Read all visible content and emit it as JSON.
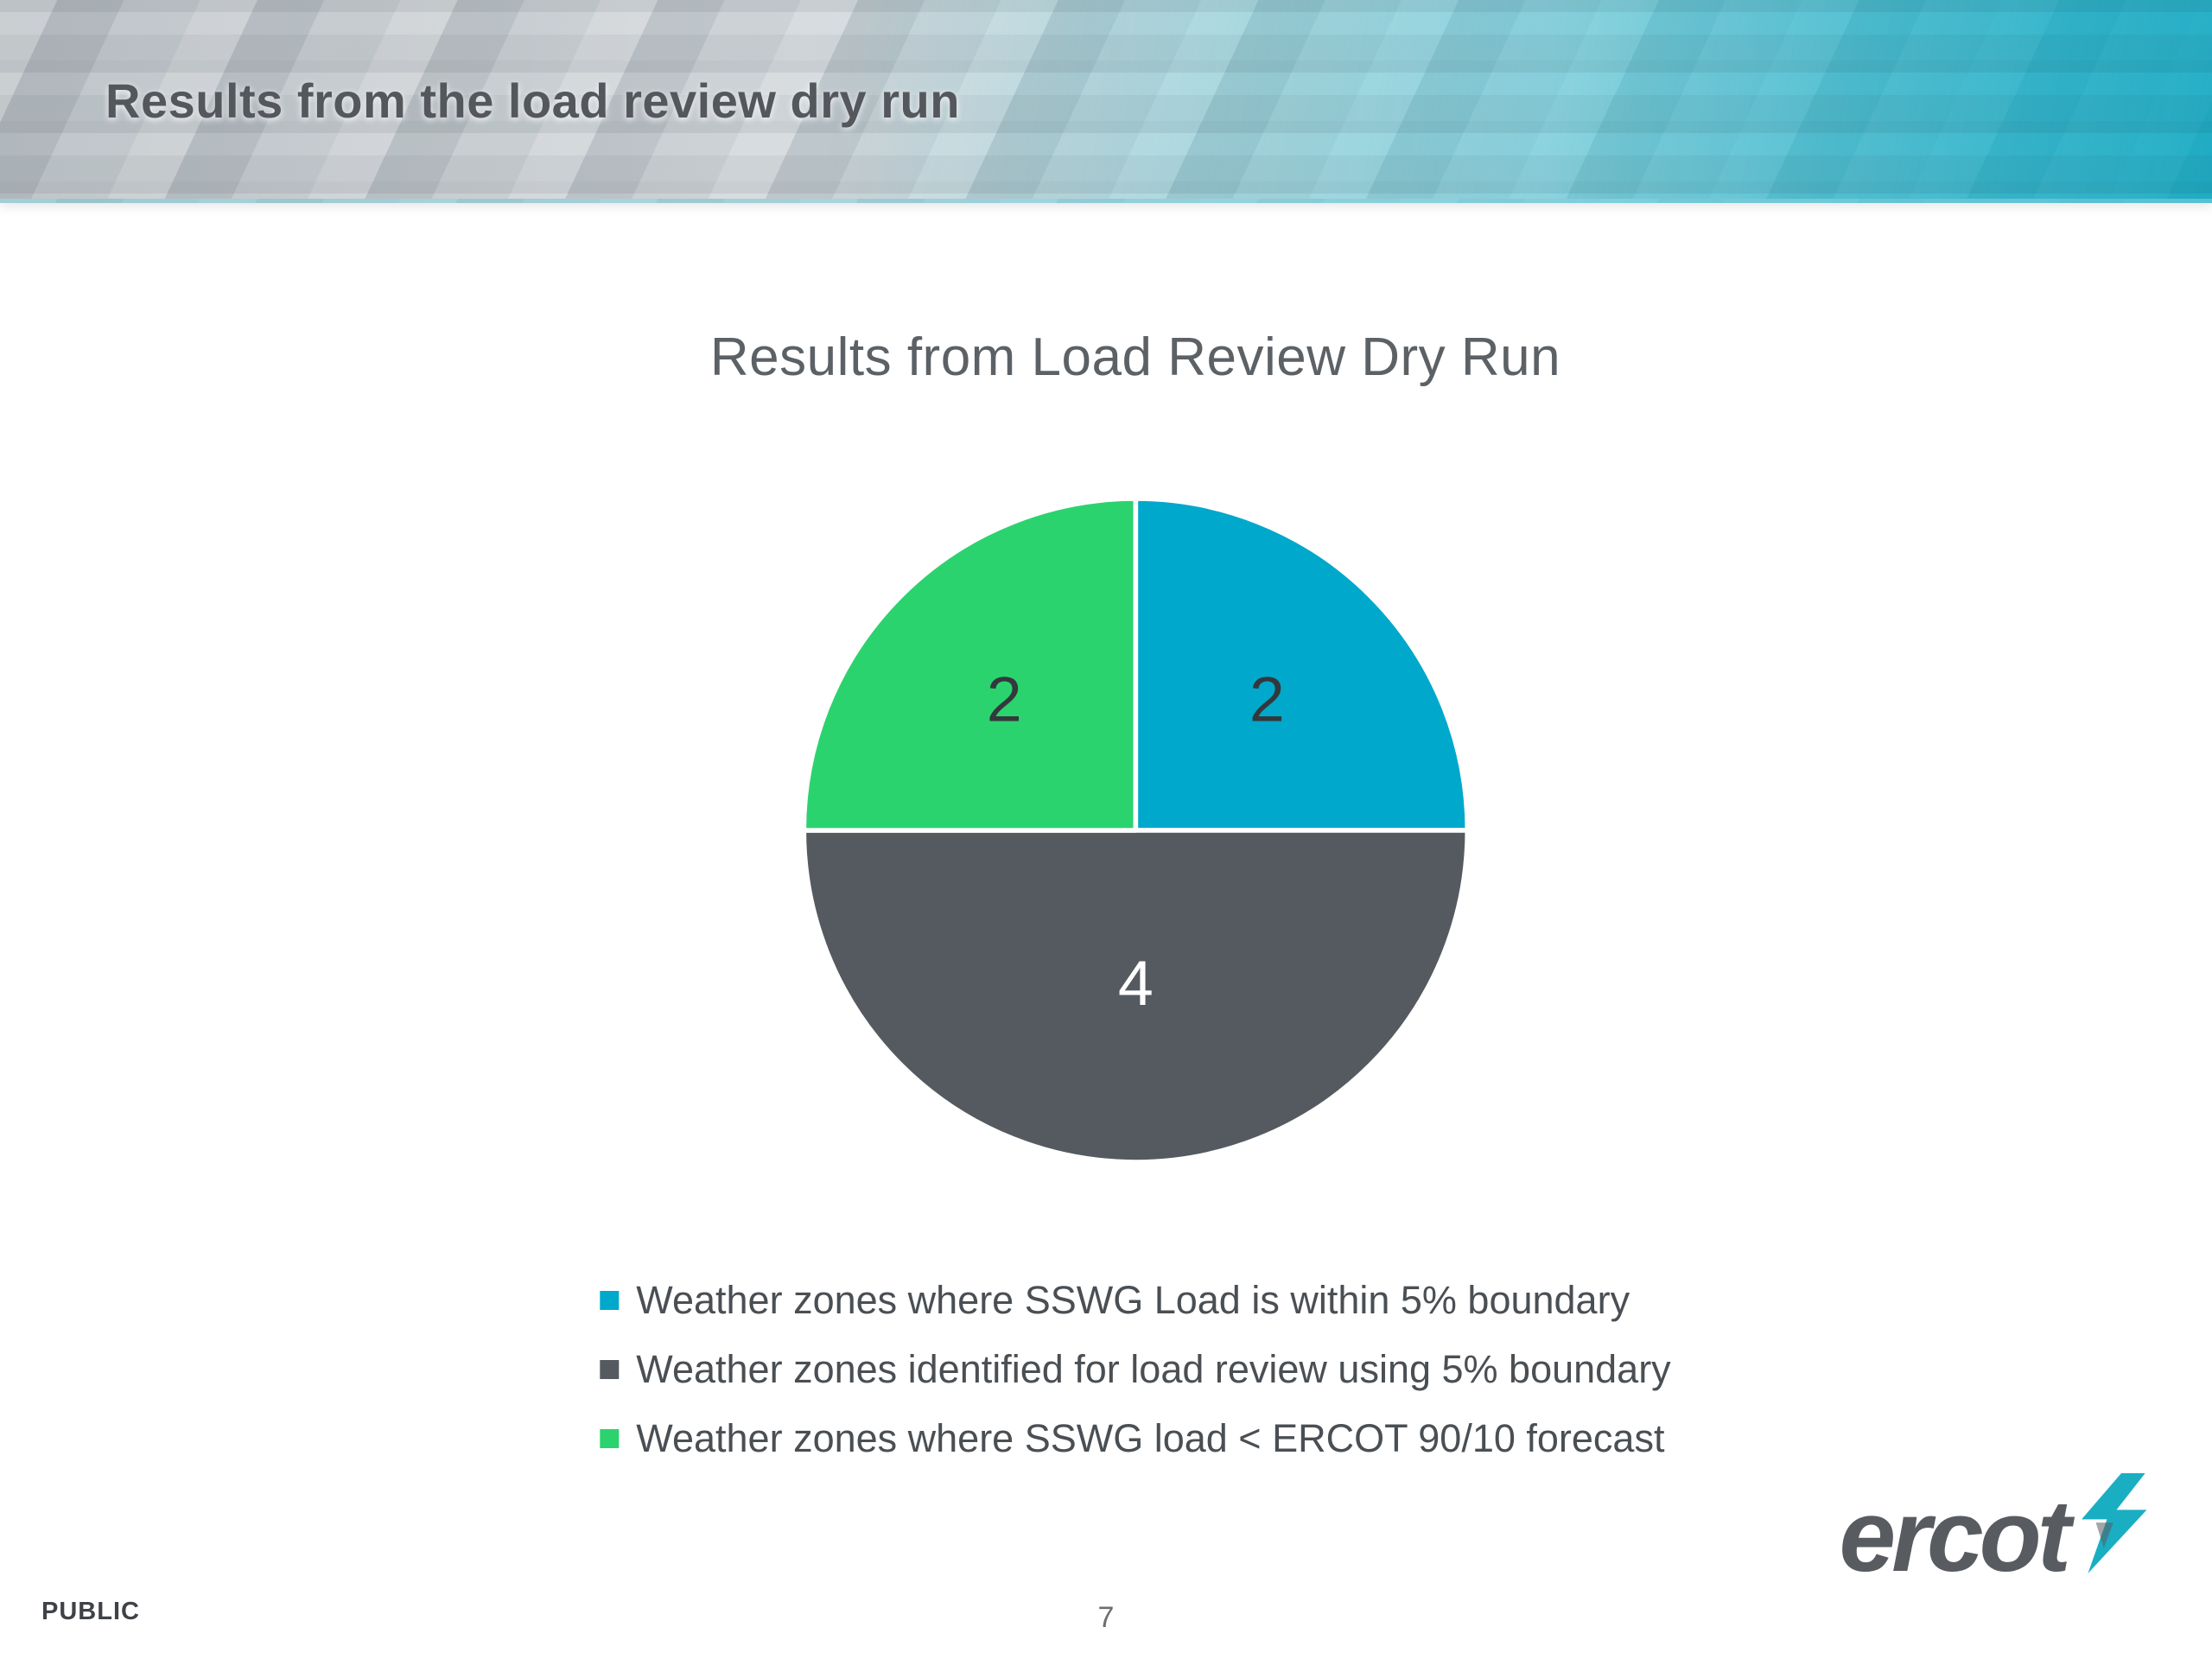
{
  "slide": {
    "header": {
      "title": "Results from the load review dry run"
    },
    "footer": {
      "classification": "PUBLIC",
      "page_number": "7",
      "logo_text": "ercot"
    }
  },
  "colors": {
    "banner_teal": "#35b6ca",
    "header_text": "#54585d",
    "chart_title_text": "#5c6166",
    "legend_text": "#4a4f54",
    "logo_gray": "#585c61",
    "logo_bolt_teal": "#1aaec3"
  },
  "chart_data": {
    "type": "pie",
    "title": "Results from Load Review Dry Run",
    "start_angle_deg": 0,
    "direction": "clockwise",
    "legend_position": "bottom",
    "slices": [
      {
        "label": "Weather zones where SSWG Load is within 5% boundary",
        "value": 2,
        "color": "#00a8cc",
        "value_label_color": "#33383d"
      },
      {
        "label": "Weather zones identified for load review using 5% boundary",
        "value": 4,
        "color": "#555a60",
        "value_label_color": "#ffffff"
      },
      {
        "label": "Weather zones where SSWG load < ERCOT 90/10 forecast",
        "value": 2,
        "color": "#2bd36e",
        "value_label_color": "#33383d"
      }
    ]
  }
}
